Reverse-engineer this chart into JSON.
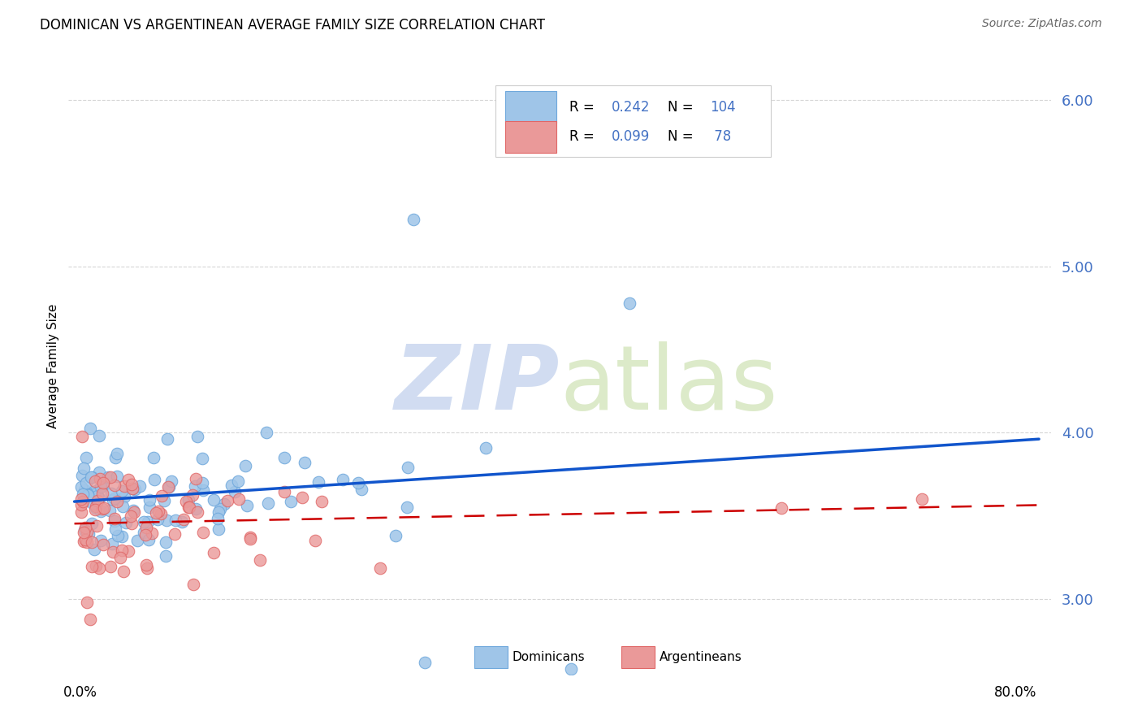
{
  "title": "DOMINICAN VS ARGENTINEAN AVERAGE FAMILY SIZE CORRELATION CHART",
  "source": "Source: ZipAtlas.com",
  "ylabel": "Average Family Size",
  "ytick_values": [
    3.0,
    4.0,
    5.0,
    6.0
  ],
  "ytick_labels": [
    "3.00",
    "4.00",
    "5.00",
    "6.00"
  ],
  "xlim": [
    0.0,
    0.8
  ],
  "ylim": [
    2.55,
    6.25
  ],
  "dominican_color": "#9fc5e8",
  "dominican_edge": "#6fa8dc",
  "argentinean_color": "#ea9999",
  "argentinean_edge": "#e06666",
  "dominican_line_color": "#1155cc",
  "argentinean_line_color": "#cc0000",
  "watermark_zip_color": "#ccd9f0",
  "watermark_atlas_color": "#d9e8c4",
  "legend_box_color": "#f8f8f8",
  "legend_edge_color": "#cccccc",
  "grid_color": "#cccccc",
  "title_color": "#000000",
  "source_color": "#666666",
  "ytick_color": "#4472c4",
  "dom_seed": 42,
  "arg_seed": 99,
  "n_dom": 104,
  "n_arg": 78
}
